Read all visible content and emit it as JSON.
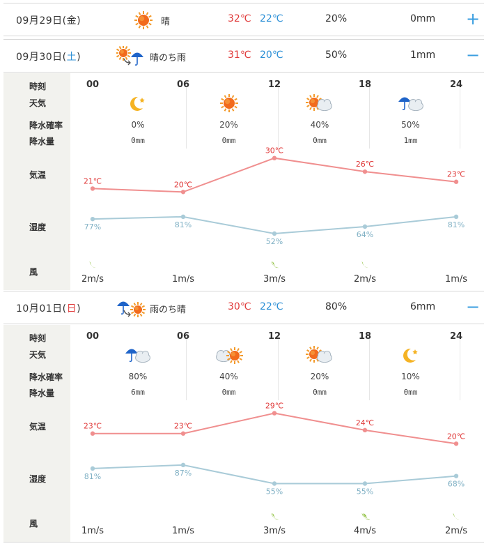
{
  "days": [
    {
      "date_main": "09月29日(",
      "weekday": "金",
      "date_close": ")",
      "weekday_class": "",
      "weather_label": "晴",
      "weather_icon": "sun-icon",
      "high": "32℃",
      "low": "22℃",
      "pop": "20%",
      "rain": "0mm",
      "toggle": "+",
      "expanded": false
    },
    {
      "date_main": "09月30日(",
      "weekday": "土",
      "date_close": ")",
      "weekday_class": "sat",
      "weather_label": "晴のち雨",
      "weather_icon": "sun-then-rain-icon",
      "high": "31℃",
      "low": "20℃",
      "pop": "50%",
      "rain": "1mm",
      "toggle": "−",
      "expanded": true
    },
    {
      "date_main": "10月01日(",
      "weekday": "日",
      "date_close": ")",
      "weekday_class": "sun",
      "weather_label": "雨のち晴",
      "weather_icon": "rain-then-sun-icon",
      "high": "30℃",
      "low": "22℃",
      "pop": "80%",
      "rain": "6mm",
      "toggle": "−",
      "expanded": true
    }
  ],
  "labels": {
    "time": "時刻",
    "weather": "天気",
    "pop": "降水確率",
    "rain": "降水量",
    "temp": "気温",
    "humidity": "湿度",
    "wind": "風"
  },
  "details": [
    {
      "hours": [
        "00",
        "06",
        "12",
        "18",
        "24"
      ],
      "weather_icons": [
        "moon-icon",
        "sun-icon",
        "sun-cloud-icon",
        "rain-cloud-icon",
        ""
      ],
      "pop": [
        "0%",
        "20%",
        "40%",
        "50%",
        ""
      ],
      "rain": [
        "0mm",
        "0mm",
        "0mm",
        "1mm",
        ""
      ],
      "temp_values": [
        21,
        20,
        30,
        26,
        23
      ],
      "temp_labels": [
        "21℃",
        "20℃",
        "30℃",
        "26℃",
        "23℃"
      ],
      "humidity_values": [
        77,
        81,
        52,
        64,
        81
      ],
      "humidity_labels": [
        "77%",
        "81%",
        "52%",
        "64%",
        "81%"
      ],
      "wind": [
        "2m/s",
        "1m/s",
        "3m/s",
        "2m/s",
        "1m/s"
      ],
      "temp_color": "#f08f8f",
      "humidity_color": "#a9cbd8"
    },
    {
      "hours": [
        "00",
        "06",
        "12",
        "18",
        "24"
      ],
      "weather_icons": [
        "rain-cloud-icon",
        "cloud-sun-icon",
        "sun-cloud-icon",
        "moon-icon",
        ""
      ],
      "pop": [
        "80%",
        "40%",
        "20%",
        "10%",
        ""
      ],
      "rain": [
        "6mm",
        "0mm",
        "0mm",
        "0mm",
        ""
      ],
      "temp_values": [
        23,
        23,
        29,
        24,
        20
      ],
      "temp_labels": [
        "23℃",
        "23℃",
        "29℃",
        "24℃",
        "20℃"
      ],
      "humidity_values": [
        81,
        87,
        55,
        55,
        68
      ],
      "humidity_labels": [
        "81%",
        "87%",
        "55%",
        "55%",
        "68%"
      ],
      "wind": [
        "1m/s",
        "1m/s",
        "3m/s",
        "4m/s",
        "2m/s"
      ],
      "temp_color": "#f08f8f",
      "humidity_color": "#a9cbd8"
    }
  ],
  "colors": {
    "high": "#e03a3a",
    "low": "#2b8fd6",
    "accent": "#3a9ee0",
    "leaf": "#8cbf3a"
  }
}
